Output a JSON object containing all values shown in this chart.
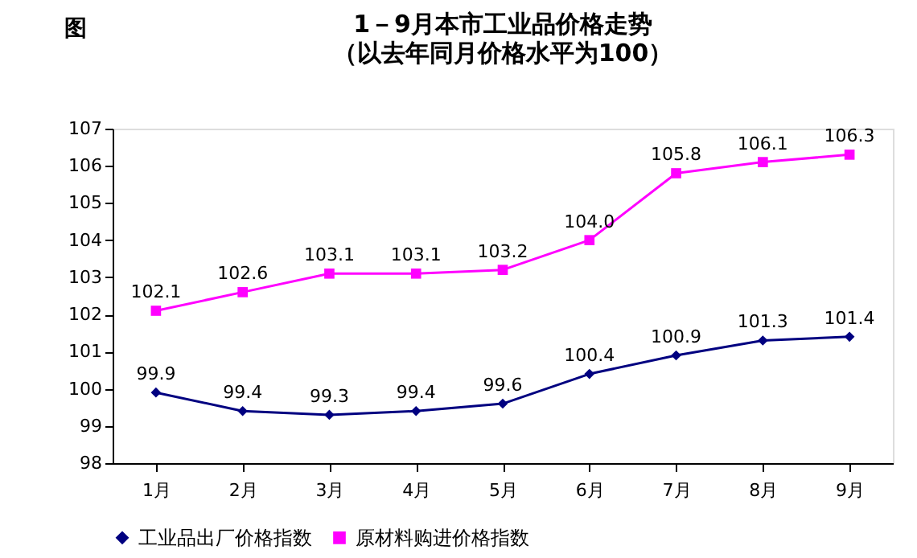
{
  "chart_data": {
    "type": "line",
    "title": "1－9月本市工业品价格走势",
    "subtitle": "（以去年同月价格水平为100）",
    "annotations": [
      "图"
    ],
    "categories": [
      "1月",
      "2月",
      "3月",
      "4月",
      "5月",
      "6月",
      "7月",
      "8月",
      "9月"
    ],
    "series": [
      {
        "name": "工业品出厂价格指数",
        "color": "#000080",
        "marker": "diamond",
        "values": [
          99.9,
          99.4,
          99.3,
          99.4,
          99.6,
          100.4,
          100.9,
          101.3,
          101.4
        ]
      },
      {
        "name": "原材料购进价格指数",
        "color": "#ff00ff",
        "marker": "square",
        "values": [
          102.1,
          102.6,
          103.1,
          103.1,
          103.2,
          104.0,
          105.8,
          106.1,
          106.3
        ],
        "value_labels": [
          "102.1",
          "102.6",
          "103.1",
          "103.1",
          "103.2",
          "104.0",
          "105.8",
          "106.1",
          "106.3"
        ]
      }
    ],
    "ylim": [
      98,
      107
    ],
    "yticks": [
      98,
      99,
      100,
      101,
      102,
      103,
      104,
      105,
      106,
      107
    ],
    "grid": false,
    "legend": "bottom",
    "data_labels": true,
    "line_style": "solid"
  }
}
